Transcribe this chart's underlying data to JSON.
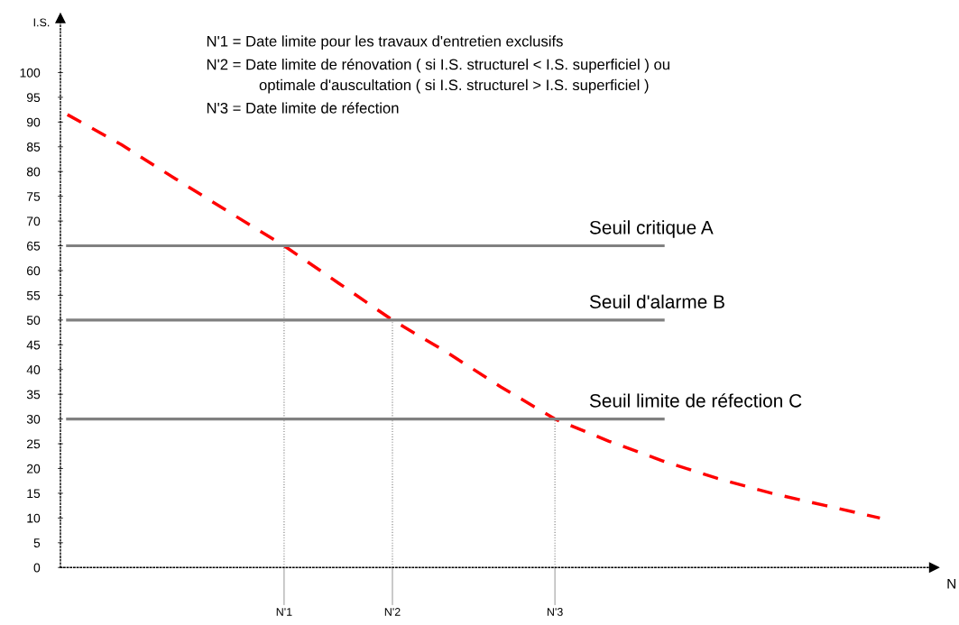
{
  "chart_data": {
    "type": "line",
    "xlabel": "N",
    "ylabel": "I.S.",
    "annotations": [
      "N'1 = Date limite pour les travaux d'entretien exclusifs",
      "N'2 = Date limite de rénovation ( si I.S. structurel < I.S. superficiel ) ou",
      "optimale d'auscultation ( si I.S. structurel > I.S. superficiel )",
      "N'3 = Date limite de réfection"
    ],
    "categories": [
      null,
      null,
      null,
      null,
      "N'1",
      null,
      "N'2",
      null,
      null,
      "N'3",
      null,
      null,
      null,
      null,
      null,
      null
    ],
    "ylim": [
      0,
      111
    ],
    "yticks": [
      0,
      5,
      10,
      15,
      20,
      25,
      30,
      35,
      40,
      45,
      50,
      55,
      60,
      65,
      70,
      75,
      80,
      85,
      90,
      95,
      100
    ],
    "grid": false,
    "legend": false,
    "series": [
      {
        "color": "#ff0000",
        "line_style": "dashed",
        "values": [
          91.5,
          85.4,
          78.5,
          71.7,
          65,
          57.5,
          50,
          43.5,
          36.5,
          30,
          25.5,
          21.5,
          18,
          15,
          12.5,
          10
        ]
      },
      {
        "name": "Seuil critique A",
        "color": "#808080",
        "line_style": "solid",
        "values": [
          65,
          65,
          65,
          65,
          65,
          65,
          65,
          65,
          65,
          65,
          65,
          65,
          null,
          null,
          null,
          null
        ]
      },
      {
        "name": "Seuil d'alarme B",
        "color": "#808080",
        "line_style": "solid",
        "values": [
          50,
          50,
          50,
          50,
          50,
          50,
          50,
          50,
          50,
          50,
          50,
          50,
          null,
          null,
          null,
          null
        ]
      },
      {
        "name": "Seuil limite de réfection C",
        "color": "#808080",
        "line_style": "solid",
        "values": [
          30,
          30,
          30,
          30,
          30,
          30,
          30,
          30,
          30,
          30,
          30,
          30,
          null,
          null,
          null,
          null
        ]
      }
    ],
    "ref_lines": [
      {
        "axis": "x",
        "value": "N'1",
        "color": "#808080",
        "line_style": "dotted"
      },
      {
        "axis": "x",
        "value": "N'2",
        "color": "#808080",
        "line_style": "dotted"
      },
      {
        "axis": "x",
        "value": "N'3",
        "color": "#808080",
        "line_style": "dotted"
      }
    ]
  }
}
